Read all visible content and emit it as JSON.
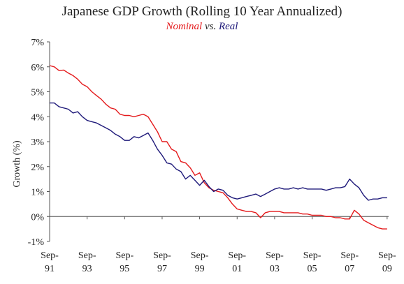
{
  "chart_data": {
    "type": "line",
    "title": "Japanese GDP Growth (Rolling 10 Year Annualized)",
    "subtitle": {
      "nominal": "Nominal",
      "vs": "vs.",
      "real": "Real"
    },
    "ylabel": "Growth (%)",
    "xlabel": "",
    "ylim": [
      -1,
      7
    ],
    "yticks": [
      -1,
      0,
      1,
      2,
      3,
      4,
      5,
      6,
      7
    ],
    "ytick_labels": [
      "-1%",
      "0%",
      "1%",
      "2%",
      "3%",
      "4%",
      "5%",
      "6%",
      "7%"
    ],
    "xlim": [
      1991.67,
      2009.75
    ],
    "xticks": [
      {
        "pos": 1991.67,
        "line1": "Sep-",
        "line2": "91"
      },
      {
        "pos": 1993.67,
        "line1": "Sep-",
        "line2": "93"
      },
      {
        "pos": 1995.67,
        "line1": "Sep-",
        "line2": "95"
      },
      {
        "pos": 1997.67,
        "line1": "Sep-",
        "line2": "97"
      },
      {
        "pos": 1999.67,
        "line1": "Sep-",
        "line2": "99"
      },
      {
        "pos": 2001.67,
        "line1": "Sep-",
        "line2": "01"
      },
      {
        "pos": 2003.67,
        "line1": "Sep-",
        "line2": "03"
      },
      {
        "pos": 2005.67,
        "line1": "Sep-",
        "line2": "05"
      },
      {
        "pos": 2007.67,
        "line1": "Sep-",
        "line2": "07"
      },
      {
        "pos": 2009.67,
        "line1": "Sep-",
        "line2": "09"
      }
    ],
    "grid": false,
    "legend": "none",
    "series": [
      {
        "name": "Nominal",
        "color": "#e41a1c",
        "x": [
          1991.67,
          1991.92,
          1992.17,
          1992.42,
          1992.67,
          1992.92,
          1993.17,
          1993.42,
          1993.67,
          1993.92,
          1994.17,
          1994.42,
          1994.67,
          1994.92,
          1995.17,
          1995.42,
          1995.67,
          1995.92,
          1996.17,
          1996.42,
          1996.67,
          1996.92,
          1997.17,
          1997.42,
          1997.67,
          1997.92,
          1998.17,
          1998.42,
          1998.67,
          1998.92,
          1999.17,
          1999.42,
          1999.67,
          1999.92,
          2000.17,
          2000.42,
          2000.67,
          2000.92,
          2001.17,
          2001.42,
          2001.67,
          2001.92,
          2002.17,
          2002.42,
          2002.67,
          2002.92,
          2003.17,
          2003.42,
          2003.67,
          2003.92,
          2004.17,
          2004.42,
          2004.67,
          2004.92,
          2005.17,
          2005.42,
          2005.67,
          2005.92,
          2006.17,
          2006.42,
          2006.67,
          2006.92,
          2007.17,
          2007.42,
          2007.67,
          2007.92,
          2008.17,
          2008.42,
          2008.67,
          2008.92,
          2009.17,
          2009.42,
          2009.67
        ],
        "values": [
          6.05,
          6.0,
          5.85,
          5.87,
          5.75,
          5.65,
          5.5,
          5.3,
          5.2,
          5.0,
          4.85,
          4.7,
          4.5,
          4.35,
          4.3,
          4.1,
          4.05,
          4.05,
          4.0,
          4.05,
          4.1,
          4.0,
          3.7,
          3.4,
          3.0,
          3.0,
          2.7,
          2.6,
          2.2,
          2.15,
          1.95,
          1.65,
          1.75,
          1.35,
          1.15,
          1.05,
          1.0,
          0.95,
          0.75,
          0.5,
          0.3,
          0.25,
          0.2,
          0.2,
          0.15,
          -0.05,
          0.15,
          0.2,
          0.2,
          0.2,
          0.15,
          0.15,
          0.15,
          0.15,
          0.1,
          0.1,
          0.05,
          0.05,
          0.05,
          0.0,
          0.0,
          -0.05,
          -0.05,
          -0.1,
          -0.1,
          0.25,
          0.1,
          -0.15,
          -0.25,
          -0.35,
          -0.45,
          -0.5,
          -0.5
        ]
      },
      {
        "name": "Real",
        "color": "#1f1a7a",
        "x": [
          1991.67,
          1991.92,
          1992.17,
          1992.42,
          1992.67,
          1992.92,
          1993.17,
          1993.42,
          1993.67,
          1993.92,
          1994.17,
          1994.42,
          1994.67,
          1994.92,
          1995.17,
          1995.42,
          1995.67,
          1995.92,
          1996.17,
          1996.42,
          1996.67,
          1996.92,
          1997.17,
          1997.42,
          1997.67,
          1997.92,
          1998.17,
          1998.42,
          1998.67,
          1998.92,
          1999.17,
          1999.42,
          1999.67,
          1999.92,
          2000.17,
          2000.42,
          2000.67,
          2000.92,
          2001.17,
          2001.42,
          2001.67,
          2001.92,
          2002.17,
          2002.42,
          2002.67,
          2002.92,
          2003.17,
          2003.42,
          2003.67,
          2003.92,
          2004.17,
          2004.42,
          2004.67,
          2004.92,
          2005.17,
          2005.42,
          2005.67,
          2005.92,
          2006.17,
          2006.42,
          2006.67,
          2006.92,
          2007.17,
          2007.42,
          2007.67,
          2007.92,
          2008.17,
          2008.42,
          2008.67,
          2008.92,
          2009.17,
          2009.42,
          2009.67
        ],
        "values": [
          4.55,
          4.55,
          4.4,
          4.35,
          4.3,
          4.15,
          4.2,
          4.0,
          3.85,
          3.8,
          3.75,
          3.65,
          3.55,
          3.45,
          3.3,
          3.2,
          3.05,
          3.05,
          3.2,
          3.15,
          3.25,
          3.35,
          3.05,
          2.7,
          2.45,
          2.15,
          2.1,
          1.9,
          1.8,
          1.5,
          1.65,
          1.45,
          1.25,
          1.45,
          1.2,
          1.0,
          1.1,
          1.05,
          0.85,
          0.75,
          0.7,
          0.75,
          0.8,
          0.85,
          0.9,
          0.8,
          0.9,
          1.0,
          1.1,
          1.15,
          1.1,
          1.1,
          1.15,
          1.1,
          1.15,
          1.1,
          1.1,
          1.1,
          1.1,
          1.05,
          1.1,
          1.15,
          1.15,
          1.2,
          1.5,
          1.3,
          1.15,
          0.85,
          0.65,
          0.7,
          0.7,
          0.75,
          0.75
        ]
      }
    ]
  }
}
